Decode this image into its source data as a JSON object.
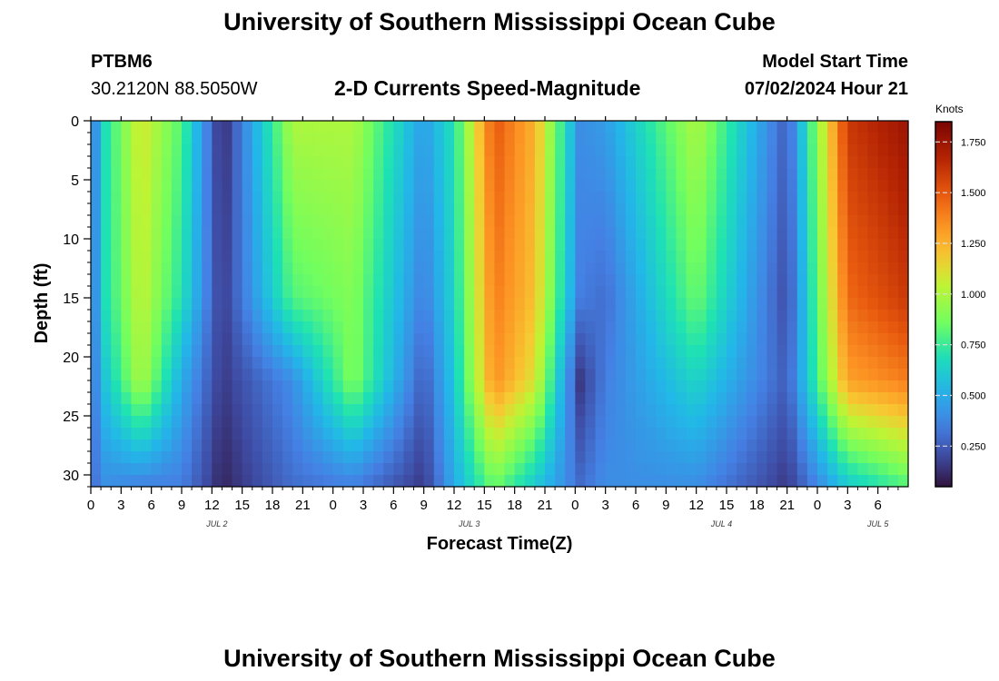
{
  "header": {
    "title": "University of Southern Mississippi Ocean Cube",
    "station_id": "PTBM6",
    "station_coords": "30.2120N  88.5050W",
    "chart_subtitle": "2-D Currents Speed-Magnitude",
    "model_start_label": "Model Start Time",
    "model_start_value": "07/02/2024 Hour 21"
  },
  "footer": {
    "title": "University of Southern Mississippi Ocean Cube"
  },
  "chart_data": {
    "type": "heatmap",
    "title": "2-D Currents Speed-Magnitude",
    "xlabel": "Forecast Time(Z)",
    "ylabel": "Depth (ft)",
    "x_range_hours": [
      0,
      81
    ],
    "x_ticks": [
      {
        "h": 0,
        "label": "0"
      },
      {
        "h": 3,
        "label": "3"
      },
      {
        "h": 6,
        "label": "6"
      },
      {
        "h": 9,
        "label": "9"
      },
      {
        "h": 12,
        "label": "12"
      },
      {
        "h": 15,
        "label": "15"
      },
      {
        "h": 18,
        "label": "18"
      },
      {
        "h": 21,
        "label": "21"
      },
      {
        "h": 24,
        "label": "0"
      },
      {
        "h": 27,
        "label": "3"
      },
      {
        "h": 30,
        "label": "6"
      },
      {
        "h": 33,
        "label": "9"
      },
      {
        "h": 36,
        "label": "12"
      },
      {
        "h": 39,
        "label": "15"
      },
      {
        "h": 42,
        "label": "18"
      },
      {
        "h": 45,
        "label": "21"
      },
      {
        "h": 48,
        "label": "0"
      },
      {
        "h": 51,
        "label": "3"
      },
      {
        "h": 54,
        "label": "6"
      },
      {
        "h": 57,
        "label": "9"
      },
      {
        "h": 60,
        "label": "12"
      },
      {
        "h": 63,
        "label": "15"
      },
      {
        "h": 66,
        "label": "18"
      },
      {
        "h": 69,
        "label": "21"
      },
      {
        "h": 72,
        "label": "0"
      },
      {
        "h": 75,
        "label": "3"
      },
      {
        "h": 78,
        "label": "6"
      }
    ],
    "date_labels": [
      {
        "h": 12.5,
        "label": "JUL 2"
      },
      {
        "h": 37.5,
        "label": "JUL 3"
      },
      {
        "h": 62.5,
        "label": "JUL 4"
      },
      {
        "h": 78.0,
        "label": "JUL 5"
      }
    ],
    "y_range_ft": [
      0,
      31
    ],
    "y_ticks": [
      0,
      5,
      10,
      15,
      20,
      25,
      30
    ],
    "colorbar": {
      "unit": "Knots",
      "min": 0.05,
      "max": 1.85,
      "ticks": [
        "0.250",
        "0.500",
        "0.750",
        "1.000",
        "1.250",
        "1.500",
        "1.750"
      ]
    },
    "grid_resolution": {
      "x_step_hours": 1,
      "y_step_ft": 1
    },
    "speed_profile_by_hour_knots": {
      "0": [
        0.3,
        0.3,
        0.3,
        0.3
      ],
      "1.5": [
        0.7,
        0.7,
        0.6,
        0.4
      ],
      "5": [
        1.1,
        1.05,
        1.0,
        0.35
      ],
      "9": [
        0.8,
        0.7,
        0.5,
        0.35
      ],
      "13": [
        0.1,
        0.15,
        0.15,
        0.1
      ],
      "20": [
        1.0,
        0.8,
        0.4,
        0.3
      ],
      "26": [
        1.0,
        0.9,
        0.9,
        0.35
      ],
      "33": [
        0.45,
        0.35,
        0.25,
        0.15
      ],
      "36": [
        0.7,
        0.65,
        0.6,
        0.5
      ],
      "40": [
        1.5,
        1.4,
        1.35,
        0.85
      ],
      "44": [
        1.25,
        1.2,
        1.1,
        0.6
      ],
      "48.5": [
        0.4,
        0.35,
        0.15,
        0.3
      ],
      "51": [
        0.45,
        0.3,
        0.35,
        0.4
      ],
      "60": [
        1.0,
        0.85,
        0.65,
        0.4
      ],
      "69": [
        0.25,
        0.2,
        0.25,
        0.15
      ],
      "75": [
        1.6,
        1.45,
        1.3,
        0.6
      ],
      "81": [
        1.75,
        1.6,
        1.4,
        0.8
      ]
    },
    "profile_depths_ft": [
      0,
      15,
      22,
      31
    ]
  }
}
